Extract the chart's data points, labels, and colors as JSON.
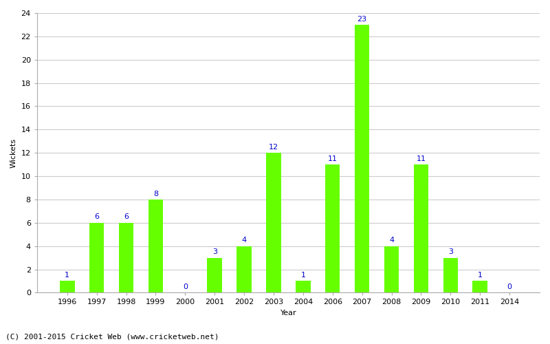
{
  "years": [
    1996,
    1997,
    1998,
    1999,
    2000,
    2001,
    2002,
    2003,
    2004,
    2006,
    2007,
    2008,
    2009,
    2010,
    2011,
    2014
  ],
  "wickets": [
    1,
    6,
    6,
    8,
    0,
    3,
    4,
    12,
    1,
    11,
    23,
    4,
    11,
    3,
    1,
    0
  ],
  "bar_color": "#66ff00",
  "bar_edge_color": "#66ff00",
  "label_color": "#0000cc",
  "xlabel": "Year",
  "ylabel": "Wickets",
  "ylim": [
    0,
    24
  ],
  "yticks": [
    0,
    2,
    4,
    6,
    8,
    10,
    12,
    14,
    16,
    18,
    20,
    22,
    24
  ],
  "footer": "(C) 2001-2015 Cricket Web (www.cricketweb.net)",
  "background_color": "#ffffff",
  "grid_color": "#cccccc",
  "label_fontsize": 8,
  "axis_fontsize": 8,
  "bar_width": 0.5
}
